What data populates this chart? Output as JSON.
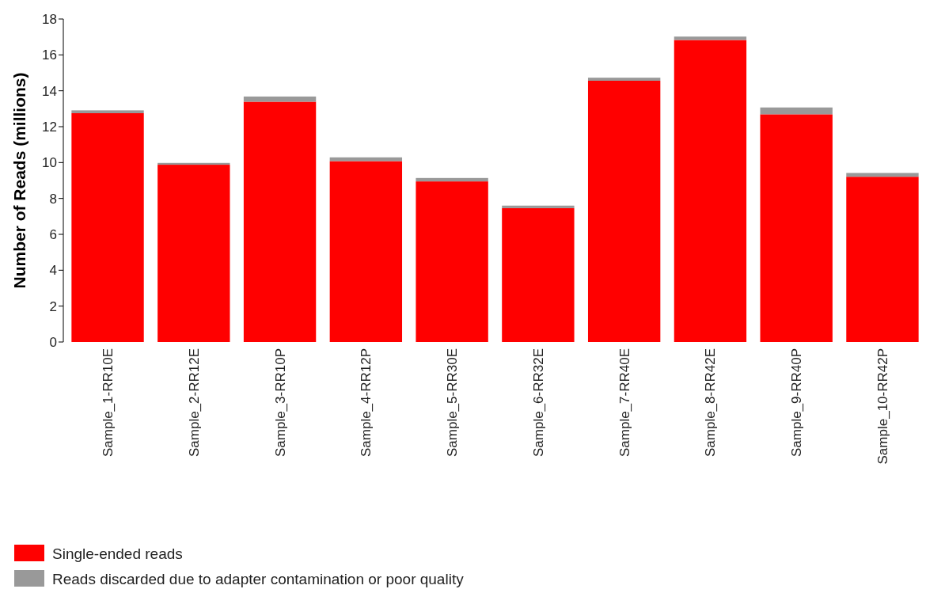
{
  "chart_data": {
    "type": "bar",
    "stacked": true,
    "ylabel": "Number of Reads (millions)",
    "categories": [
      "Sample_1-RR10E",
      "Sample_2-RR12E",
      "Sample_3-RR10P",
      "Sample_4-RR12P",
      "Sample_5-RR30E",
      "Sample_6-RR32E",
      "Sample_7-RR40E",
      "Sample_8-RR42E",
      "Sample_9-RR40P",
      "Sample_10-RR42P"
    ],
    "series": [
      {
        "name": "Single-ended reads",
        "color": "#ff0000",
        "values": [
          12.75,
          9.88,
          13.39,
          10.08,
          8.95,
          7.46,
          14.56,
          16.83,
          12.69,
          9.21
        ]
      },
      {
        "name": "Reads discarded due to adapter contamination or poor quality",
        "color": "#999999",
        "values": [
          0.16,
          0.1,
          0.29,
          0.21,
          0.19,
          0.14,
          0.17,
          0.19,
          0.38,
          0.21
        ]
      }
    ],
    "ylim": [
      0,
      18
    ],
    "yticks": [
      0,
      2,
      4,
      6,
      8,
      10,
      12,
      14,
      16,
      18
    ],
    "grid": false,
    "legend": "bottom left"
  }
}
